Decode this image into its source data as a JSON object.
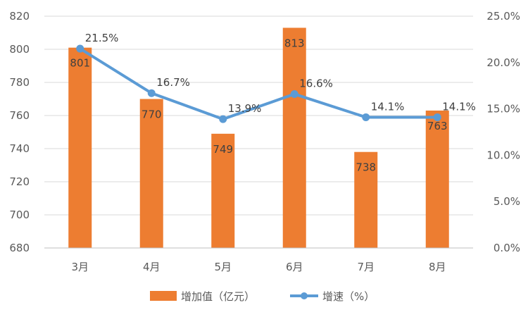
{
  "chart_data": {
    "type": "bar",
    "categories": [
      "3月",
      "4月",
      "5月",
      "6月",
      "7月",
      "8月"
    ],
    "series": [
      {
        "name": "增加值（亿元）",
        "type": "bar",
        "axis": "left",
        "color": "#ED7D31",
        "values": [
          801,
          770,
          749,
          813,
          738,
          763
        ],
        "labels": [
          "801",
          "770",
          "749",
          "813",
          "738",
          "763"
        ]
      },
      {
        "name": "增速（%）",
        "type": "line",
        "axis": "right",
        "color": "#5B9BD5",
        "values": [
          21.5,
          16.7,
          13.9,
          16.6,
          14.1,
          14.1
        ],
        "labels": [
          "21.5%",
          "16.7%",
          "13.9%",
          "16.6%",
          "14.1%",
          "14.1%"
        ]
      }
    ],
    "y_left": {
      "ylim": [
        680,
        820
      ],
      "ticks": [
        "680",
        "700",
        "720",
        "740",
        "760",
        "780",
        "800",
        "820"
      ]
    },
    "y_right": {
      "ylim": [
        0,
        25
      ],
      "ticks": [
        "0.0%",
        "5.0%",
        "10.0%",
        "15.0%",
        "20.0%",
        "25.0%"
      ]
    },
    "grid": true,
    "legend_position": "bottom"
  }
}
